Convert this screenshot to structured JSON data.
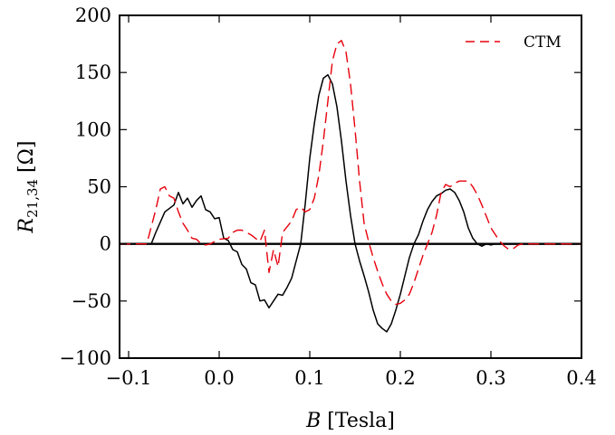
{
  "chart_data": {
    "type": "line",
    "xlabel": "B [Tesla]",
    "ylabel": "R21,34 [Ω]",
    "xlim": [
      -0.11,
      0.4
    ],
    "ylim": [
      -100,
      200
    ],
    "x_ticks": [
      -0.1,
      0.0,
      0.1,
      0.2,
      0.3,
      0.4
    ],
    "x_tick_labels": [
      "−0.1",
      "0.0",
      "0.1",
      "0.2",
      "0.3",
      "0.4"
    ],
    "y_ticks": [
      -100,
      -50,
      0,
      50,
      100,
      150,
      200
    ],
    "y_tick_labels": [
      "−100",
      "−50",
      "0",
      "50",
      "100",
      "150",
      "200"
    ],
    "grid": false,
    "legend_position": "top-right",
    "zero_line": true,
    "series": [
      {
        "color": "#000000",
        "style": "solid",
        "x": [
          -0.11,
          -0.075,
          -0.07,
          -0.06,
          -0.05,
          -0.045,
          -0.04,
          -0.035,
          -0.03,
          -0.025,
          -0.02,
          -0.015,
          -0.01,
          -0.005,
          0.0,
          0.005,
          0.01,
          0.015,
          0.02,
          0.025,
          0.03,
          0.035,
          0.04,
          0.045,
          0.05,
          0.055,
          0.06,
          0.065,
          0.07,
          0.075,
          0.08,
          0.085,
          0.09,
          0.095,
          0.1,
          0.105,
          0.11,
          0.115,
          0.12,
          0.125,
          0.13,
          0.135,
          0.14,
          0.145,
          0.15,
          0.155,
          0.16,
          0.165,
          0.17,
          0.175,
          0.18,
          0.185,
          0.19,
          0.195,
          0.2,
          0.205,
          0.21,
          0.215,
          0.22,
          0.225,
          0.23,
          0.235,
          0.24,
          0.245,
          0.25,
          0.255,
          0.26,
          0.265,
          0.27,
          0.275,
          0.28,
          0.285,
          0.29,
          0.295,
          0.3,
          0.305,
          0.31,
          0.315,
          0.32,
          0.325,
          0.33,
          0.34,
          0.35,
          0.36,
          0.4
        ],
        "y": [
          0,
          0,
          10,
          28,
          34,
          45,
          35,
          40,
          32,
          38,
          42,
          30,
          28,
          22,
          23,
          5,
          3,
          -5,
          -7,
          -18,
          -22,
          -34,
          -36,
          -50,
          -49,
          -56,
          -50,
          -44,
          -45,
          -38,
          -30,
          -15,
          0,
          35,
          75,
          105,
          130,
          145,
          148,
          140,
          120,
          90,
          55,
          25,
          0,
          -15,
          -28,
          -42,
          -58,
          -70,
          -74,
          -77,
          -70,
          -58,
          -44,
          -28,
          -12,
          0,
          8,
          20,
          30,
          37,
          42,
          44,
          47,
          48,
          45,
          38,
          28,
          14,
          5,
          0,
          -2,
          0,
          -1,
          0,
          0,
          0,
          0,
          0,
          0,
          0,
          0,
          0,
          0
        ]
      },
      {
        "name": "CTM",
        "color": "#e8000b",
        "style": "dashed",
        "x": [
          -0.11,
          -0.08,
          -0.07,
          -0.065,
          -0.06,
          -0.055,
          -0.05,
          -0.045,
          -0.04,
          -0.035,
          -0.03,
          -0.025,
          -0.02,
          -0.015,
          -0.01,
          -0.005,
          0.0,
          0.01,
          0.015,
          0.02,
          0.025,
          0.03,
          0.035,
          0.04,
          0.045,
          0.05,
          0.055,
          0.06,
          0.065,
          0.07,
          0.075,
          0.08,
          0.085,
          0.09,
          0.095,
          0.1,
          0.105,
          0.11,
          0.115,
          0.12,
          0.125,
          0.13,
          0.135,
          0.14,
          0.145,
          0.15,
          0.155,
          0.16,
          0.165,
          0.17,
          0.175,
          0.18,
          0.185,
          0.19,
          0.195,
          0.2,
          0.205,
          0.21,
          0.215,
          0.22,
          0.225,
          0.23,
          0.235,
          0.24,
          0.245,
          0.25,
          0.255,
          0.26,
          0.265,
          0.27,
          0.275,
          0.28,
          0.285,
          0.29,
          0.295,
          0.3,
          0.305,
          0.31,
          0.315,
          0.32,
          0.325,
          0.33,
          0.335,
          0.34,
          0.35,
          0.36,
          0.4
        ],
        "y": [
          0,
          0,
          30,
          48,
          50,
          42,
          40,
          28,
          18,
          12,
          5,
          4,
          0,
          -1,
          0,
          2,
          4,
          5,
          10,
          12,
          12,
          10,
          8,
          5,
          2,
          12,
          -25,
          -5,
          -20,
          10,
          15,
          20,
          30,
          32,
          28,
          30,
          40,
          60,
          90,
          125,
          160,
          175,
          178,
          168,
          140,
          100,
          55,
          18,
          2,
          -12,
          -24,
          -35,
          -44,
          -50,
          -53,
          -52,
          -49,
          -44,
          -34,
          -22,
          -10,
          0,
          10,
          25,
          45,
          52,
          50,
          53,
          55,
          55,
          55,
          50,
          43,
          34,
          24,
          14,
          8,
          2,
          -2,
          -5,
          -4,
          -1,
          0,
          0,
          0,
          0,
          0
        ]
      }
    ]
  }
}
